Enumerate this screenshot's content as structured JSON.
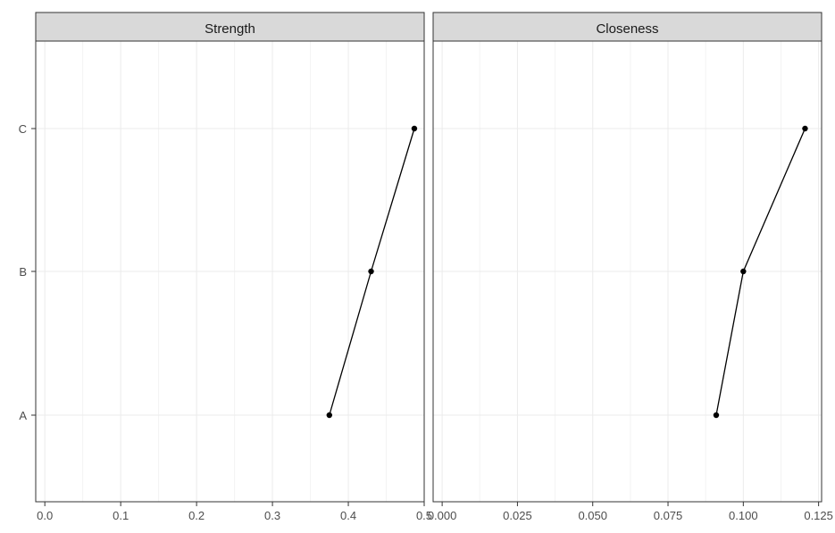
{
  "chart_data": [
    {
      "type": "line",
      "title": "Strength",
      "categories": [
        "A",
        "B",
        "C"
      ],
      "x": [
        0.375,
        0.43,
        0.487
      ],
      "xlim": [
        -0.012,
        0.5
      ],
      "x_ticks": [
        0.0,
        0.1,
        0.2,
        0.3,
        0.4,
        0.5
      ],
      "x_tick_labels": [
        "0.0",
        "0.1",
        "0.2",
        "0.3",
        "0.4",
        "0.5"
      ],
      "grid": true
    },
    {
      "type": "line",
      "title": "Closeness",
      "categories": [
        "A",
        "B",
        "C"
      ],
      "x": [
        0.091,
        0.1,
        0.1205
      ],
      "xlim": [
        -0.003,
        0.126
      ],
      "x_ticks": [
        0.0,
        0.025,
        0.05,
        0.075,
        0.1,
        0.125
      ],
      "x_tick_labels": [
        "0.000",
        "0.025",
        "0.050",
        "0.075",
        "0.100",
        "0.125"
      ],
      "grid": true
    }
  ],
  "colors": {
    "strip_fill": "#d9d9d9",
    "panel_border": "#333333",
    "grid_major": "#ebebeb",
    "grid_minor": "#f3f3f3",
    "line": "#000000",
    "point": "#000000"
  }
}
